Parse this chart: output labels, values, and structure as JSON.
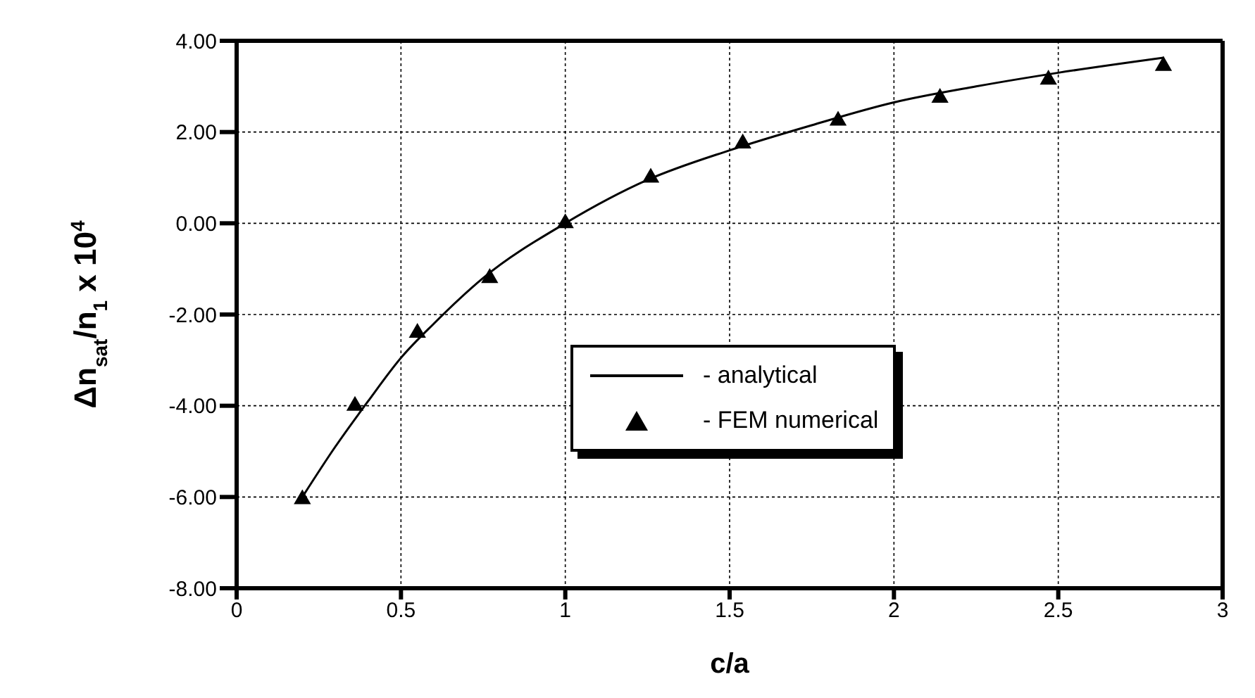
{
  "chart_data": {
    "type": "line",
    "xlabel": "c/a",
    "ylabel": "Δn$_{sat}$/n$_{1}$ x 10$^{4}$",
    "xlim": [
      0,
      3
    ],
    "xticks": [
      0,
      0.5,
      1,
      1.5,
      2,
      2.5,
      3
    ],
    "ylim": [
      -8,
      4
    ],
    "yticks": [
      {
        "value": -8,
        "label": "-8.00"
      },
      {
        "value": -6,
        "label": "-6.00"
      },
      {
        "value": -4,
        "label": "-4.00"
      },
      {
        "value": -2,
        "label": "-2.00"
      },
      {
        "value": 0,
        "label": "0.00"
      },
      {
        "value": 2,
        "label": "2.00"
      },
      {
        "value": 4,
        "label": "4.00"
      }
    ],
    "grid": true,
    "legend": "right",
    "series": [
      {
        "name": "- analytical",
        "color": "#000000",
        "marker": "none",
        "line_style": "solid",
        "x": [
          0.2,
          0.3,
          0.4,
          0.5,
          0.6,
          0.75,
          1.0,
          1.25,
          1.5,
          1.75,
          2.0,
          2.25,
          2.5,
          2.82
        ],
        "values": [
          -6.0,
          -4.9,
          -3.9,
          -2.95,
          -2.2,
          -1.2,
          0,
          0.95,
          1.6,
          2.15,
          2.65,
          3.0,
          3.3,
          3.63
        ]
      },
      {
        "name": "- FEM numerical",
        "type": "scatter",
        "color": "#000000",
        "marker": "triangle",
        "x": [
          0.2,
          0.36,
          0.55,
          0.77,
          1.0,
          1.26,
          1.54,
          1.83,
          2.14,
          2.47,
          2.82
        ],
        "values": [
          -6.05,
          -4.0,
          -2.4,
          -1.2,
          0,
          1.0,
          1.75,
          2.25,
          2.75,
          3.15,
          3.45
        ]
      }
    ]
  }
}
